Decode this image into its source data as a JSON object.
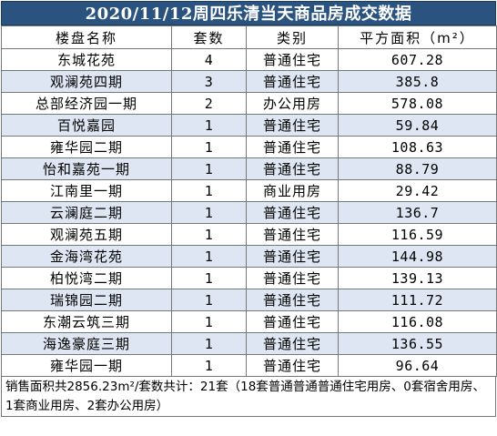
{
  "title": "2020/11/12周四乐清当天商品房成交数据",
  "headers": [
    "楼盘名称",
    "套数",
    "类别",
    "平方面积（m²）"
  ],
  "rows": [
    {
      "name": "东城花苑",
      "count": "4",
      "type": "普通住宅",
      "area": "607.28"
    },
    {
      "name": "观澜苑四期",
      "count": "3",
      "type": "普通住宅",
      "area": "385.8"
    },
    {
      "name": "总部经济园一期",
      "count": "2",
      "type": "办公用房",
      "area": "578.08"
    },
    {
      "name": "百悦嘉园",
      "count": "1",
      "type": "普通住宅",
      "area": "59.84"
    },
    {
      "name": "雍华园二期",
      "count": "1",
      "type": "普通住宅",
      "area": "108.63"
    },
    {
      "name": "怡和嘉苑一期",
      "count": "1",
      "type": "普通住宅",
      "area": "88.79"
    },
    {
      "name": "江南里一期",
      "count": "1",
      "type": "商业用房",
      "area": "29.42"
    },
    {
      "name": "云澜庭二期",
      "count": "1",
      "type": "普通住宅",
      "area": "136.7"
    },
    {
      "name": "观澜苑五期",
      "count": "1",
      "type": "普通住宅",
      "area": "116.59"
    },
    {
      "name": "金海湾花苑",
      "count": "1",
      "type": "普通住宅",
      "area": "144.98"
    },
    {
      "name": "柏悦湾二期",
      "count": "1",
      "type": "普通住宅",
      "area": "139.13"
    },
    {
      "name": "瑞锦园二期",
      "count": "1",
      "type": "普通住宅",
      "area": "111.72"
    },
    {
      "name": "东潮云筑三期",
      "count": "1",
      "type": "普通住宅",
      "area": "116.08"
    },
    {
      "name": "海逸豪庭三期",
      "count": "1",
      "type": "普通住宅",
      "area": "136.55"
    },
    {
      "name": "雍华园一期",
      "count": "1",
      "type": "普通住宅",
      "area": "96.64"
    }
  ],
  "footer": "销售面积共2856.23m²/套数共计：21套（18套普通普通普通住宅用房、0套宿舍用房、1套商业用房、2套办公用房）",
  "colors": {
    "title_bg": "#2a5380",
    "alt_row_bg": "#dde6f2",
    "border": "#777777"
  }
}
